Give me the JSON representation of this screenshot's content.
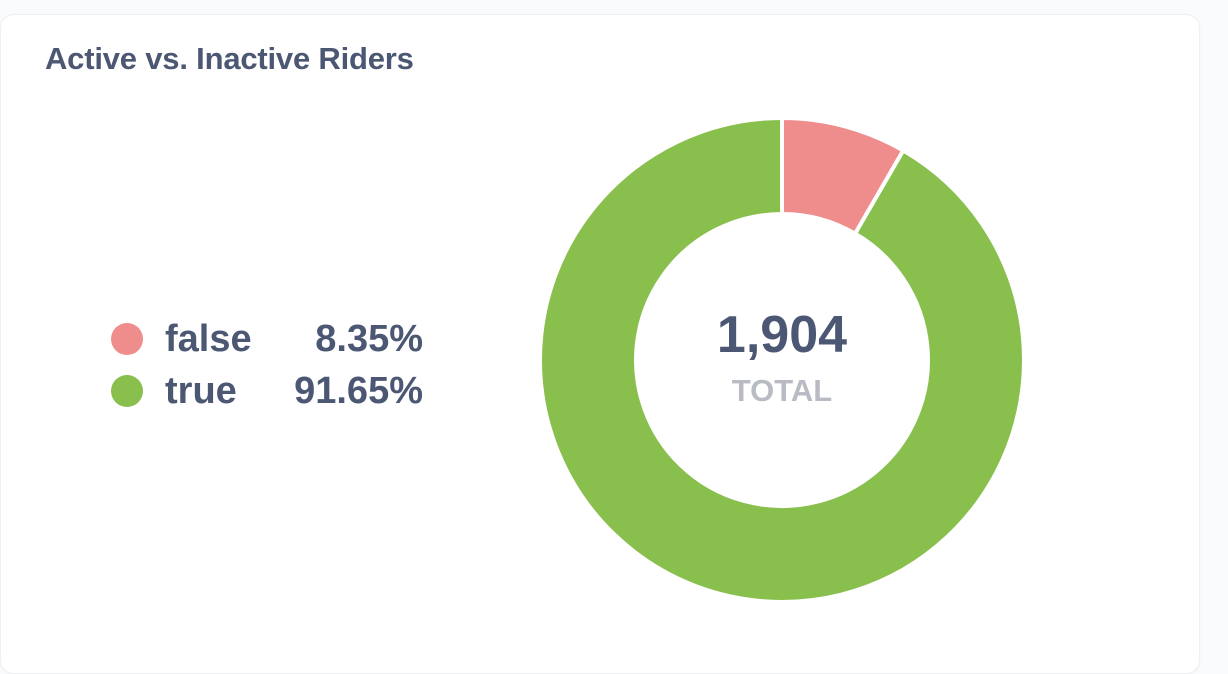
{
  "card": {
    "title": "Active vs. Inactive Riders"
  },
  "chart_data": {
    "type": "pie",
    "donut": true,
    "title": "Active vs. Inactive Riders",
    "total": 1904,
    "total_display": "1,904",
    "total_label": "TOTAL",
    "slices": [
      {
        "label": "false",
        "value": 159,
        "percent_display": "8.35%",
        "percent": 8.35,
        "color": "#ef8c8c"
      },
      {
        "label": "true",
        "value": 1745,
        "percent_display": "91.65%",
        "percent": 91.65,
        "color": "#88bf4d"
      }
    ],
    "legend_placement": "left"
  }
}
